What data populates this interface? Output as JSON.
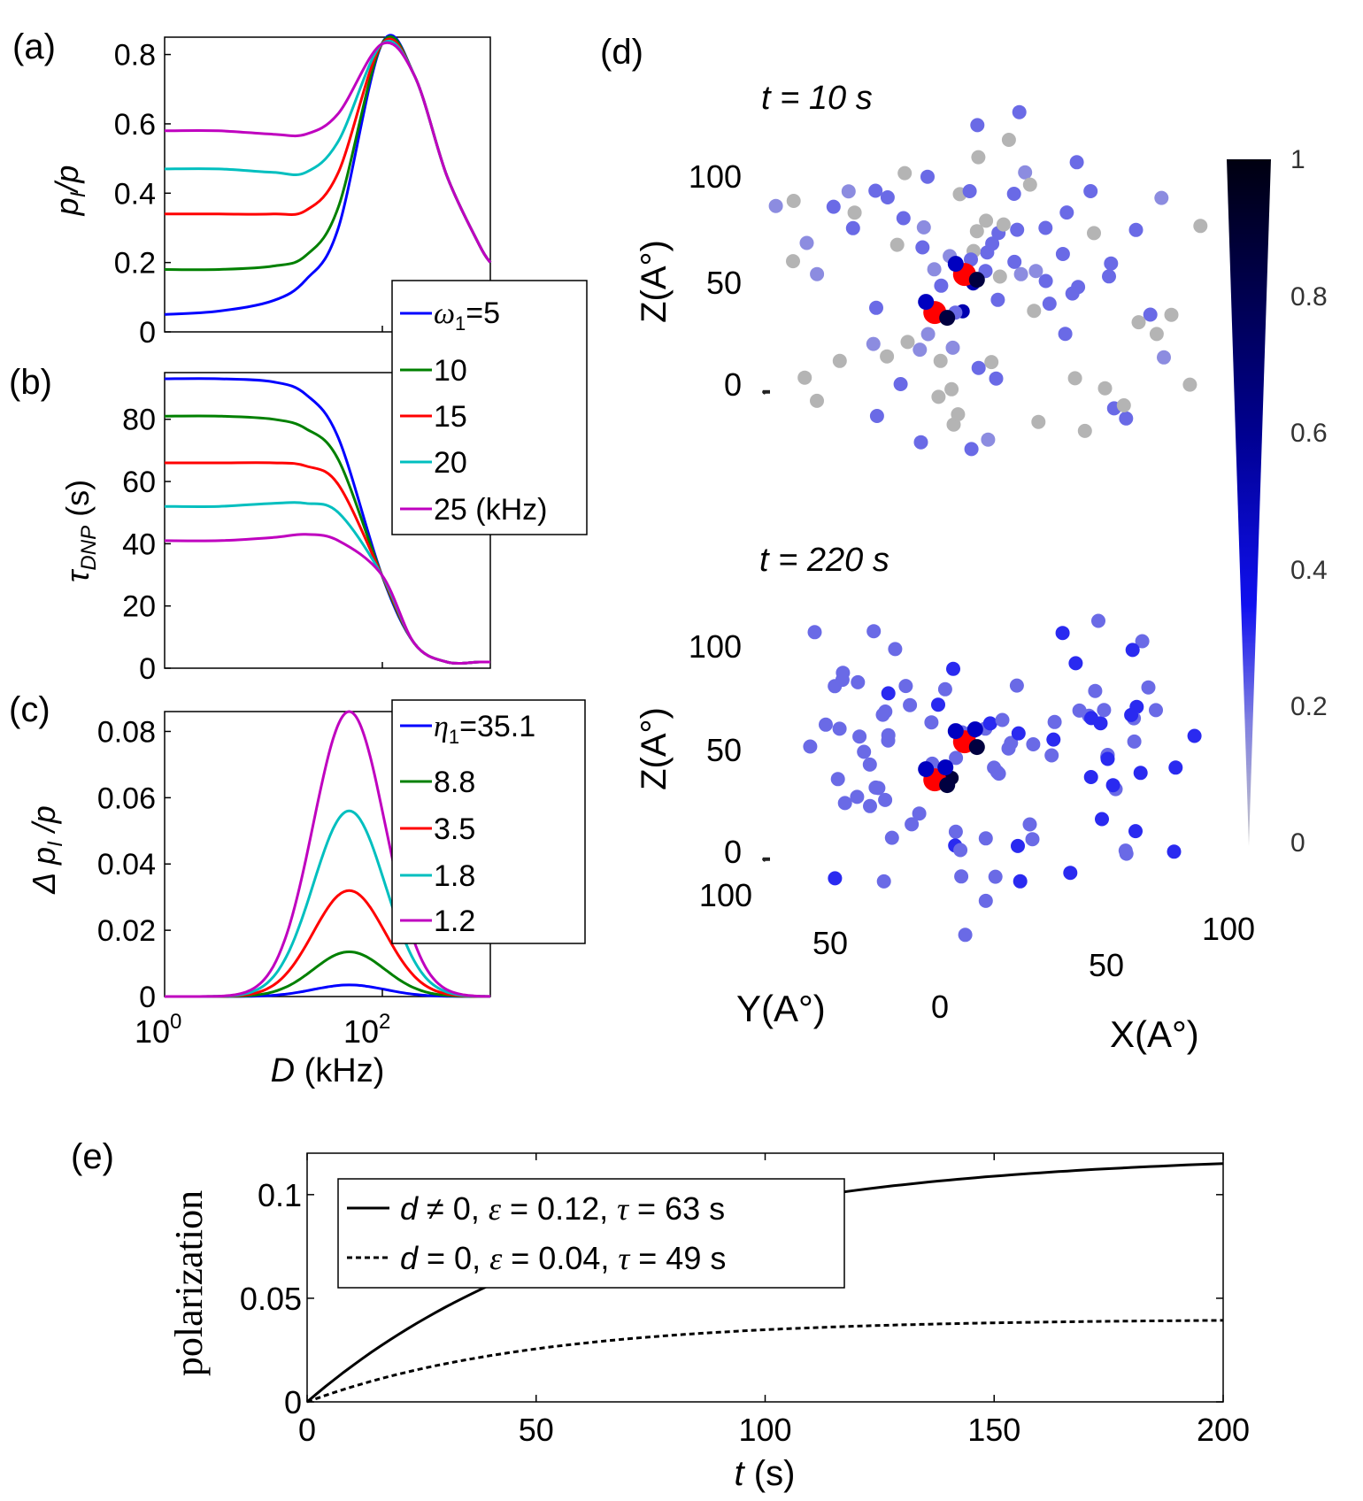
{
  "panel_labels": {
    "a": "(a)",
    "b": "(b)",
    "c": "(c)",
    "d": "(d)",
    "e": "(e)"
  },
  "chart_data": [
    {
      "id": "a",
      "type": "line",
      "ylabel_main": "p",
      "ylabel_sub": "I",
      "ylabel_tail": "/p",
      "ylim": [
        0,
        0.85
      ],
      "yticks": [
        "0",
        "0.2",
        "0.4",
        "0.6",
        "0.8"
      ],
      "x_log10": [
        0,
        0.5,
        1.0,
        1.3,
        1.6,
        2.0,
        2.3,
        2.6,
        2.9,
        3.0
      ],
      "series": [
        {
          "name": "5",
          "color": "#0000ff",
          "values": [
            0.05,
            0.06,
            0.09,
            0.15,
            0.3,
            0.83,
            0.74,
            0.45,
            0.25,
            0.2
          ]
        },
        {
          "name": "10",
          "color": "#008000",
          "values": [
            0.18,
            0.18,
            0.19,
            0.22,
            0.36,
            0.83,
            0.74,
            0.45,
            0.25,
            0.2
          ]
        },
        {
          "name": "15",
          "color": "#ff0000",
          "values": [
            0.34,
            0.34,
            0.34,
            0.35,
            0.46,
            0.83,
            0.74,
            0.45,
            0.25,
            0.2
          ]
        },
        {
          "name": "20",
          "color": "#00bfbf",
          "values": [
            0.47,
            0.47,
            0.46,
            0.46,
            0.55,
            0.83,
            0.74,
            0.45,
            0.25,
            0.2
          ]
        },
        {
          "name": "25",
          "color": "#bf00bf",
          "values": [
            0.58,
            0.58,
            0.57,
            0.57,
            0.63,
            0.83,
            0.74,
            0.45,
            0.25,
            0.2
          ]
        }
      ],
      "legend": {
        "title_sym": "ω",
        "title_sub": "1",
        "title_eq": "=5",
        "entries": [
          "10",
          "15",
          "20",
          "25 (kHz)"
        ]
      }
    },
    {
      "id": "b",
      "type": "line",
      "ylabel_main": "τ",
      "ylabel_sub": "DNP",
      "ylabel_tail": " (s)",
      "ylim": [
        0,
        95
      ],
      "yticks": [
        "0",
        "20",
        "40",
        "60",
        "80"
      ],
      "x_log10": [
        0,
        0.5,
        1.0,
        1.3,
        1.6,
        2.0,
        2.3,
        2.6,
        2.9,
        3.0
      ],
      "series": [
        {
          "name": "5",
          "color": "#0000ff",
          "values": [
            93,
            93,
            92,
            88,
            74,
            30,
            8,
            2,
            2,
            2
          ]
        },
        {
          "name": "10",
          "color": "#008000",
          "values": [
            81,
            81,
            80,
            77,
            67,
            30,
            8,
            2,
            2,
            2
          ]
        },
        {
          "name": "15",
          "color": "#ff0000",
          "values": [
            66,
            66,
            66,
            65,
            59,
            30,
            8,
            2,
            2,
            2
          ]
        },
        {
          "name": "20",
          "color": "#00bfbf",
          "values": [
            52,
            52,
            53,
            53,
            50,
            30,
            8,
            2,
            2,
            2
          ]
        },
        {
          "name": "25",
          "color": "#bf00bf",
          "values": [
            41,
            41,
            42,
            43,
            41,
            30,
            8,
            2,
            2,
            2
          ]
        }
      ]
    },
    {
      "id": "c",
      "type": "line",
      "ylabel_main": "Δ p",
      "ylabel_sub": "I",
      "ylabel_tail": " /p",
      "ylim": [
        0,
        0.086
      ],
      "yticks": [
        "0",
        "0.02",
        "0.04",
        "0.06",
        "0.08"
      ],
      "xtick_labels": [
        "10",
        "0",
        "10",
        "2"
      ],
      "xlabel_italic": "D",
      "xlabel_rest": " (kHz)",
      "legend": {
        "title_sym": "η",
        "title_sub": "1",
        "title_eq": "=35.1",
        "entries": [
          "8.8",
          "3.5",
          "1.8",
          "1.2"
        ]
      },
      "series": [
        {
          "name": "35.1",
          "color": "#0000ff",
          "peak": 0.0035
        },
        {
          "name": "8.8",
          "color": "#008000",
          "peak": 0.0135
        },
        {
          "name": "3.5",
          "color": "#ff0000",
          "peak": 0.032
        },
        {
          "name": "1.8",
          "color": "#00bfbf",
          "peak": 0.056
        },
        {
          "name": "1.2",
          "color": "#bf00bf",
          "peak": 0.086
        }
      ],
      "peak_log10": 1.7
    },
    {
      "id": "d",
      "type": "scatter",
      "subplots": [
        {
          "title": "t = 10 s"
        },
        {
          "title": "t = 220 s"
        }
      ],
      "zlabel": "Z(A°)",
      "ylabel": "Y(A°)",
      "xlabel": "X(A°)",
      "zticks": [
        "100",
        "50",
        "0"
      ],
      "yticks": [
        "100",
        "50",
        "0"
      ],
      "xticks": [
        "50",
        "100"
      ],
      "colorbar": {
        "ticks": [
          "1",
          "0.8",
          "0.6",
          "0.4",
          "0.2",
          "0"
        ],
        "range": [
          0,
          1
        ]
      }
    },
    {
      "id": "e",
      "type": "line",
      "ylabel": "polarization",
      "xlabel_italic": "t",
      "xlabel_rest": " (s)",
      "xlim": [
        0,
        200
      ],
      "ylim": [
        0,
        0.12
      ],
      "xticks": [
        "0",
        "50",
        "100",
        "150",
        "200"
      ],
      "yticks": [
        "0",
        "0.05",
        "0.1"
      ],
      "series": [
        {
          "name": "d≠0",
          "style": "solid",
          "amplitude": 0.12,
          "tau": 63
        },
        {
          "name": "d=0",
          "style": "dashed",
          "amplitude": 0.04,
          "tau": 49
        }
      ],
      "legend": {
        "line1": {
          "d": "d",
          "rel": " ≠ 0, ",
          "eps": "ε",
          "epsv": " = 0.12, ",
          "tau": "τ",
          "tauv": " = 63 s"
        },
        "line2": {
          "d": "d",
          "rel": " = 0, ",
          "eps": "ε",
          "epsv": " = 0.04, ",
          "tau": "τ",
          "tauv": " = 49 s"
        }
      }
    }
  ]
}
